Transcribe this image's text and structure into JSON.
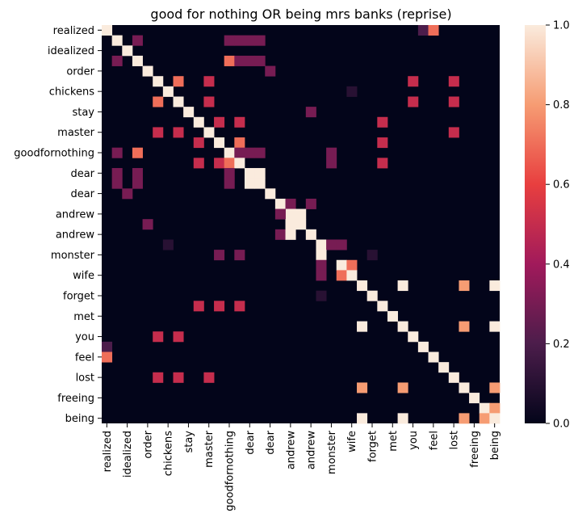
{
  "chart_data": {
    "type": "heatmap",
    "title": "good for nothing OR being mrs banks (reprise)",
    "tick_labels": [
      "realized",
      "idealized",
      "order",
      "chickens",
      "stay",
      "master",
      "goodfornothing",
      "dear",
      "dear",
      "andrew",
      "andrew",
      "monster",
      "wife",
      "forget",
      "met",
      "you",
      "feel",
      "lost",
      "freeing",
      "being"
    ],
    "n": 39,
    "tick_every": 2,
    "value_range": [
      0,
      1
    ],
    "colorbar_ticks": [
      "0.0",
      "0.2",
      "0.4",
      "0.6",
      "0.8",
      "1.0"
    ],
    "colorbar_tick_values": [
      0,
      0.2,
      0.4,
      0.6,
      0.8,
      1.0
    ],
    "colormap": [
      "#03051a",
      "#4c1d4b",
      "#a11a5b",
      "#e83f3f",
      "#f69c73",
      "#faebdd"
    ],
    "cells": [
      [
        0,
        0,
        1.0
      ],
      [
        0,
        31,
        0.2
      ],
      [
        0,
        32,
        0.7
      ],
      [
        1,
        1,
        1.0
      ],
      [
        1,
        3,
        0.3
      ],
      [
        1,
        12,
        0.3
      ],
      [
        1,
        13,
        0.3
      ],
      [
        1,
        14,
        0.3
      ],
      [
        1,
        15,
        0.3
      ],
      [
        2,
        2,
        1.0
      ],
      [
        3,
        1,
        0.3
      ],
      [
        3,
        3,
        1.0
      ],
      [
        3,
        12,
        0.7
      ],
      [
        3,
        13,
        0.3
      ],
      [
        3,
        14,
        0.3
      ],
      [
        3,
        15,
        0.3
      ],
      [
        4,
        4,
        1.0
      ],
      [
        4,
        16,
        0.3
      ],
      [
        5,
        5,
        1.0
      ],
      [
        5,
        7,
        0.7
      ],
      [
        5,
        10,
        0.5
      ],
      [
        5,
        30,
        0.5
      ],
      [
        5,
        34,
        0.5
      ],
      [
        6,
        6,
        1.0
      ],
      [
        6,
        24,
        0.1
      ],
      [
        7,
        5,
        0.7
      ],
      [
        7,
        7,
        1.0
      ],
      [
        7,
        10,
        0.5
      ],
      [
        7,
        30,
        0.5
      ],
      [
        7,
        34,
        0.5
      ],
      [
        8,
        8,
        1.0
      ],
      [
        8,
        20,
        0.3
      ],
      [
        9,
        9,
        1.0
      ],
      [
        9,
        11,
        0.5
      ],
      [
        9,
        13,
        0.5
      ],
      [
        9,
        27,
        0.5
      ],
      [
        10,
        5,
        0.5
      ],
      [
        10,
        7,
        0.5
      ],
      [
        10,
        10,
        1.0
      ],
      [
        10,
        34,
        0.5
      ],
      [
        11,
        11,
        1.0
      ],
      [
        11,
        9,
        0.5
      ],
      [
        11,
        13,
        0.7
      ],
      [
        11,
        27,
        0.5
      ],
      [
        12,
        1,
        0.3
      ],
      [
        12,
        3,
        0.7
      ],
      [
        12,
        12,
        1.0
      ],
      [
        12,
        13,
        0.3
      ],
      [
        12,
        14,
        0.3
      ],
      [
        12,
        15,
        0.3
      ],
      [
        12,
        22,
        0.3
      ],
      [
        13,
        9,
        0.5
      ],
      [
        13,
        11,
        0.5
      ],
      [
        13,
        12,
        0.7
      ],
      [
        13,
        13,
        1.0
      ],
      [
        13,
        22,
        0.3
      ],
      [
        13,
        27,
        0.5
      ],
      [
        14,
        1,
        0.3
      ],
      [
        14,
        3,
        0.3
      ],
      [
        14,
        12,
        0.3
      ],
      [
        14,
        14,
        1.0
      ],
      [
        14,
        15,
        1.0
      ],
      [
        15,
        1,
        0.3
      ],
      [
        15,
        3,
        0.3
      ],
      [
        15,
        12,
        0.3
      ],
      [
        15,
        14,
        1.0
      ],
      [
        15,
        15,
        1.0
      ],
      [
        16,
        2,
        0.3
      ],
      [
        16,
        16,
        1.0
      ],
      [
        17,
        17,
        1.0
      ],
      [
        17,
        18,
        0.3
      ],
      [
        17,
        20,
        0.3
      ],
      [
        18,
        18,
        1.0
      ],
      [
        18,
        17,
        0.3
      ],
      [
        18,
        19,
        1.0
      ],
      [
        19,
        4,
        0.3
      ],
      [
        19,
        19,
        1.0
      ],
      [
        19,
        18,
        1.0
      ],
      [
        20,
        17,
        0.3
      ],
      [
        20,
        18,
        1.0
      ],
      [
        20,
        20,
        1.0
      ],
      [
        21,
        6,
        0.1
      ],
      [
        21,
        21,
        1.0
      ],
      [
        21,
        22,
        0.3
      ],
      [
        21,
        23,
        0.3
      ],
      [
        22,
        11,
        0.3
      ],
      [
        22,
        13,
        0.3
      ],
      [
        22,
        21,
        1.0
      ],
      [
        22,
        26,
        0.1
      ],
      [
        23,
        21,
        0.3
      ],
      [
        23,
        23,
        1.0
      ],
      [
        23,
        24,
        0.7
      ],
      [
        24,
        21,
        0.3
      ],
      [
        24,
        23,
        0.7
      ],
      [
        24,
        24,
        1.0
      ],
      [
        25,
        25,
        1.0
      ],
      [
        25,
        29,
        1.0
      ],
      [
        25,
        35,
        0.8
      ],
      [
        25,
        38,
        1.0
      ],
      [
        26,
        21,
        0.1
      ],
      [
        26,
        26,
        1.0
      ],
      [
        27,
        9,
        0.5
      ],
      [
        27,
        11,
        0.5
      ],
      [
        27,
        13,
        0.5
      ],
      [
        27,
        27,
        1.0
      ],
      [
        28,
        28,
        1.0
      ],
      [
        29,
        25,
        1.0
      ],
      [
        29,
        29,
        1.0
      ],
      [
        29,
        35,
        0.8
      ],
      [
        29,
        38,
        1.0
      ],
      [
        30,
        5,
        0.5
      ],
      [
        30,
        7,
        0.5
      ],
      [
        30,
        30,
        1.0
      ],
      [
        31,
        0,
        0.2
      ],
      [
        31,
        31,
        1.0
      ],
      [
        32,
        0,
        0.7
      ],
      [
        32,
        32,
        1.0
      ],
      [
        33,
        33,
        1.0
      ],
      [
        34,
        5,
        0.5
      ],
      [
        34,
        7,
        0.5
      ],
      [
        34,
        10,
        0.5
      ],
      [
        34,
        34,
        1.0
      ],
      [
        35,
        25,
        0.8
      ],
      [
        35,
        29,
        0.8
      ],
      [
        35,
        35,
        1.0
      ],
      [
        35,
        38,
        0.8
      ],
      [
        36,
        36,
        1.0
      ],
      [
        37,
        37,
        1.0
      ],
      [
        37,
        38,
        0.8
      ],
      [
        38,
        25,
        1.0
      ],
      [
        38,
        29,
        1.0
      ],
      [
        38,
        35,
        0.8
      ],
      [
        38,
        37,
        0.8
      ],
      [
        38,
        38,
        1.0
      ]
    ]
  }
}
